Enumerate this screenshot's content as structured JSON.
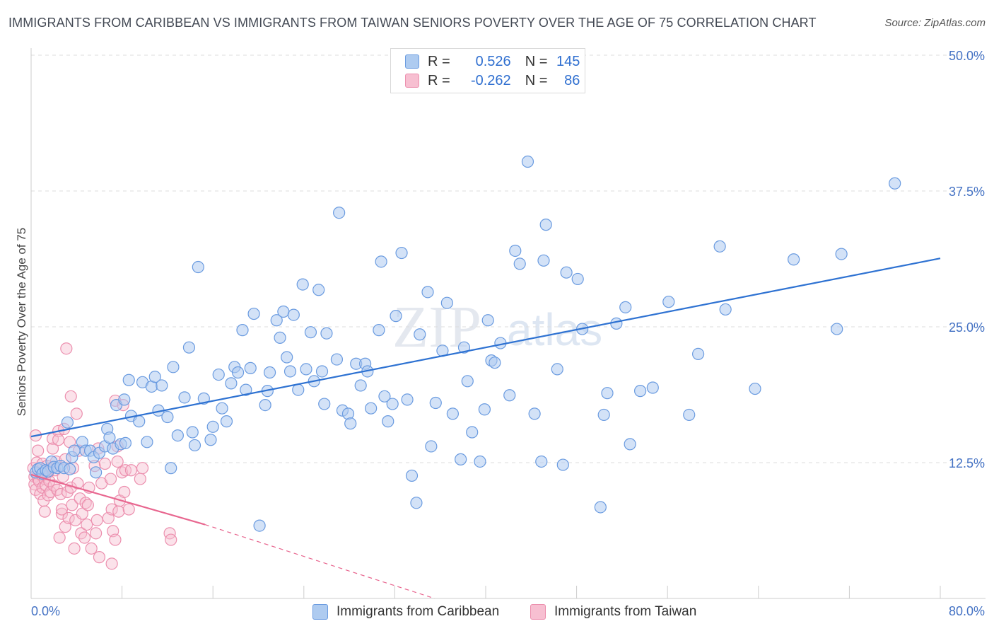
{
  "title": "IMMIGRANTS FROM CARIBBEAN VS IMMIGRANTS FROM TAIWAN SENIORS POVERTY OVER THE AGE OF 75 CORRELATION CHART",
  "source": "Source: ZipAtlas.com",
  "watermark": {
    "zip": "ZIP",
    "atlas": "atlas"
  },
  "legend": {
    "r_label": "R =",
    "n_label": "N =",
    "series": [
      {
        "name": "Immigrants from Caribbean",
        "r": "0.526",
        "n": "145"
      },
      {
        "name": "Immigrants from Taiwan",
        "r": "-0.262",
        "n": "86"
      }
    ]
  },
  "colors": {
    "caribbean_fill": "#aecbf0",
    "caribbean_stroke": "#6a9be0",
    "caribbean_line": "#2e72d2",
    "taiwan_fill": "#f7bfd1",
    "taiwan_stroke": "#ec8fae",
    "taiwan_line": "#e8668f",
    "grid": "#dddddd",
    "tick_label": "#4472c4"
  },
  "chart_data": {
    "type": "scatter",
    "title": "IMMIGRANTS FROM CARIBBEAN VS IMMIGRANTS FROM TAIWAN SENIORS POVERTY OVER THE AGE OF 75 CORRELATION CHART",
    "xlabel": "",
    "ylabel": "Seniors Poverty Over the Age of 75",
    "xlim": [
      0,
      80
    ],
    "ylim": [
      0,
      50
    ],
    "x_tick_labels": [
      "0.0%",
      "80.0%"
    ],
    "y_ticks": [
      12.5,
      25.0,
      37.5,
      50.0
    ],
    "y_tick_labels": [
      "12.5%",
      "25.0%",
      "37.5%",
      "50.0%"
    ],
    "grid": true,
    "legend_position": "top-center",
    "series": [
      {
        "name": "Immigrants from Caribbean",
        "trend": {
          "x0": 0,
          "y0": 14.9,
          "x1": 80,
          "y1": 31.3
        },
        "points": [
          [
            0.4,
            11.6
          ],
          [
            0.6,
            11.9
          ],
          [
            0.8,
            12.0
          ],
          [
            1.0,
            11.5
          ],
          [
            1.3,
            11.8
          ],
          [
            1.5,
            11.7
          ],
          [
            1.8,
            12.6
          ],
          [
            2.0,
            12.1
          ],
          [
            2.3,
            12.0
          ],
          [
            2.6,
            12.2
          ],
          [
            2.9,
            12.0
          ],
          [
            3.2,
            16.2
          ],
          [
            3.4,
            11.9
          ],
          [
            3.6,
            13.0
          ],
          [
            3.8,
            13.6
          ],
          [
            4.5,
            14.4
          ],
          [
            4.8,
            13.6
          ],
          [
            5.2,
            13.6
          ],
          [
            5.5,
            13.0
          ],
          [
            5.7,
            11.6
          ],
          [
            6.0,
            13.4
          ],
          [
            6.5,
            14.0
          ],
          [
            6.7,
            15.6
          ],
          [
            6.9,
            14.8
          ],
          [
            7.2,
            13.8
          ],
          [
            7.5,
            17.8
          ],
          [
            7.9,
            14.2
          ],
          [
            8.2,
            18.3
          ],
          [
            8.3,
            14.3
          ],
          [
            8.6,
            20.1
          ],
          [
            8.8,
            16.8
          ],
          [
            9.5,
            16.3
          ],
          [
            9.8,
            19.9
          ],
          [
            10.2,
            14.4
          ],
          [
            10.6,
            19.5
          ],
          [
            10.9,
            20.4
          ],
          [
            11.2,
            17.3
          ],
          [
            11.5,
            19.6
          ],
          [
            12.0,
            16.7
          ],
          [
            12.3,
            12.0
          ],
          [
            12.5,
            21.3
          ],
          [
            12.9,
            15.0
          ],
          [
            13.5,
            18.5
          ],
          [
            13.9,
            23.1
          ],
          [
            14.2,
            15.3
          ],
          [
            14.4,
            14.1
          ],
          [
            14.7,
            30.5
          ],
          [
            15.2,
            18.4
          ],
          [
            15.8,
            14.6
          ],
          [
            16.0,
            15.8
          ],
          [
            16.5,
            20.6
          ],
          [
            16.8,
            17.5
          ],
          [
            17.2,
            16.3
          ],
          [
            17.6,
            19.8
          ],
          [
            17.9,
            21.3
          ],
          [
            18.2,
            20.8
          ],
          [
            18.6,
            24.7
          ],
          [
            18.9,
            19.2
          ],
          [
            19.3,
            21.2
          ],
          [
            19.6,
            26.2
          ],
          [
            20.1,
            6.7
          ],
          [
            20.6,
            17.8
          ],
          [
            20.8,
            19.1
          ],
          [
            21.0,
            20.8
          ],
          [
            21.6,
            25.6
          ],
          [
            21.9,
            24.0
          ],
          [
            22.2,
            26.4
          ],
          [
            22.5,
            22.2
          ],
          [
            22.8,
            20.9
          ],
          [
            23.1,
            26.1
          ],
          [
            23.5,
            19.2
          ],
          [
            23.9,
            28.9
          ],
          [
            24.2,
            21.1
          ],
          [
            24.6,
            24.5
          ],
          [
            24.9,
            20.0
          ],
          [
            25.3,
            28.4
          ],
          [
            25.6,
            20.9
          ],
          [
            25.8,
            17.9
          ],
          [
            26.0,
            24.4
          ],
          [
            26.9,
            22.0
          ],
          [
            27.1,
            35.5
          ],
          [
            27.4,
            17.3
          ],
          [
            27.9,
            17.0
          ],
          [
            28.1,
            16.1
          ],
          [
            28.6,
            21.6
          ],
          [
            29.0,
            19.6
          ],
          [
            29.4,
            21.6
          ],
          [
            29.6,
            20.9
          ],
          [
            29.9,
            17.5
          ],
          [
            30.6,
            24.7
          ],
          [
            30.8,
            31.0
          ],
          [
            31.1,
            18.6
          ],
          [
            31.4,
            16.3
          ],
          [
            31.8,
            17.9
          ],
          [
            32.1,
            26.0
          ],
          [
            32.6,
            31.8
          ],
          [
            33.1,
            18.3
          ],
          [
            33.5,
            11.3
          ],
          [
            33.9,
            8.8
          ],
          [
            34.2,
            24.3
          ],
          [
            34.9,
            28.2
          ],
          [
            35.2,
            14.0
          ],
          [
            35.6,
            18.0
          ],
          [
            36.2,
            22.8
          ],
          [
            36.6,
            27.2
          ],
          [
            37.1,
            17.0
          ],
          [
            37.8,
            12.8
          ],
          [
            38.1,
            23.1
          ],
          [
            38.4,
            20.0
          ],
          [
            38.8,
            15.3
          ],
          [
            39.5,
            12.6
          ],
          [
            39.9,
            17.4
          ],
          [
            40.2,
            25.6
          ],
          [
            40.5,
            21.9
          ],
          [
            40.8,
            21.7
          ],
          [
            41.3,
            23.5
          ],
          [
            42.1,
            18.7
          ],
          [
            42.6,
            32.0
          ],
          [
            43.0,
            30.8
          ],
          [
            43.7,
            40.2
          ],
          [
            44.3,
            17.0
          ],
          [
            44.9,
            12.6
          ],
          [
            45.1,
            31.1
          ],
          [
            45.3,
            34.4
          ],
          [
            46.3,
            21.1
          ],
          [
            46.8,
            12.3
          ],
          [
            47.1,
            30.0
          ],
          [
            48.1,
            29.4
          ],
          [
            48.5,
            24.8
          ],
          [
            50.1,
            8.4
          ],
          [
            50.4,
            16.9
          ],
          [
            50.7,
            18.9
          ],
          [
            51.5,
            25.3
          ],
          [
            52.3,
            26.8
          ],
          [
            52.7,
            14.2
          ],
          [
            53.6,
            19.1
          ],
          [
            54.7,
            19.4
          ],
          [
            56.1,
            27.3
          ],
          [
            57.9,
            16.9
          ],
          [
            58.7,
            22.5
          ],
          [
            60.6,
            32.4
          ],
          [
            61.1,
            26.6
          ],
          [
            63.7,
            19.3
          ],
          [
            67.1,
            31.2
          ],
          [
            70.9,
            24.8
          ],
          [
            71.3,
            31.7
          ],
          [
            76.0,
            38.2
          ]
        ]
      },
      {
        "name": "Immigrants from Taiwan",
        "trend": {
          "x0": 0,
          "y0": 11.4,
          "x1": 15.3,
          "y1": 6.8
        },
        "trend_extension": {
          "x0": 15.3,
          "y0": 6.8,
          "x1": 35.5,
          "y1": 0.0
        },
        "points": [
          [
            0.2,
            12.0
          ],
          [
            0.3,
            11.2
          ],
          [
            0.3,
            10.5
          ],
          [
            0.4,
            10.0
          ],
          [
            0.4,
            15.0
          ],
          [
            0.5,
            12.5
          ],
          [
            0.6,
            11.0
          ],
          [
            0.6,
            13.6
          ],
          [
            0.7,
            10.8
          ],
          [
            0.8,
            9.6
          ],
          [
            0.9,
            11.4
          ],
          [
            1.0,
            10.2
          ],
          [
            1.0,
            12.4
          ],
          [
            1.1,
            9.0
          ],
          [
            1.2,
            11.0
          ],
          [
            1.2,
            8.0
          ],
          [
            1.3,
            10.4
          ],
          [
            1.4,
            12.2
          ],
          [
            1.5,
            9.5
          ],
          [
            1.5,
            11.6
          ],
          [
            1.6,
            10.8
          ],
          [
            1.7,
            9.8
          ],
          [
            1.8,
            12.0
          ],
          [
            1.9,
            13.8
          ],
          [
            1.9,
            14.7
          ],
          [
            2.0,
            10.4
          ],
          [
            2.1,
            11.8
          ],
          [
            2.2,
            12.6
          ],
          [
            2.3,
            10.0
          ],
          [
            2.4,
            15.4
          ],
          [
            2.4,
            14.6
          ],
          [
            2.5,
            5.6
          ],
          [
            2.6,
            9.6
          ],
          [
            2.7,
            7.8
          ],
          [
            2.7,
            8.2
          ],
          [
            2.8,
            11.2
          ],
          [
            2.9,
            15.6
          ],
          [
            3.0,
            12.8
          ],
          [
            3.0,
            6.6
          ],
          [
            3.1,
            23.0
          ],
          [
            3.2,
            9.8
          ],
          [
            3.3,
            7.4
          ],
          [
            3.4,
            14.4
          ],
          [
            3.5,
            10.2
          ],
          [
            3.5,
            18.6
          ],
          [
            3.6,
            8.6
          ],
          [
            3.7,
            12.0
          ],
          [
            3.8,
            4.6
          ],
          [
            3.9,
            7.2
          ],
          [
            4.0,
            17.0
          ],
          [
            4.1,
            10.6
          ],
          [
            4.2,
            13.6
          ],
          [
            4.3,
            9.2
          ],
          [
            4.4,
            6.0
          ],
          [
            4.5,
            7.8
          ],
          [
            4.7,
            5.6
          ],
          [
            4.8,
            8.8
          ],
          [
            4.9,
            6.8
          ],
          [
            5.0,
            8.6
          ],
          [
            5.1,
            10.2
          ],
          [
            5.3,
            4.6
          ],
          [
            5.6,
            12.2
          ],
          [
            5.7,
            6.0
          ],
          [
            5.8,
            7.2
          ],
          [
            5.9,
            13.8
          ],
          [
            6.0,
            3.8
          ],
          [
            6.2,
            10.6
          ],
          [
            6.5,
            12.4
          ],
          [
            6.8,
            7.4
          ],
          [
            7.0,
            11.0
          ],
          [
            7.1,
            8.2
          ],
          [
            7.1,
            3.2
          ],
          [
            7.2,
            6.2
          ],
          [
            7.4,
            18.2
          ],
          [
            7.4,
            5.4
          ],
          [
            7.6,
            14.0
          ],
          [
            7.6,
            12.6
          ],
          [
            7.7,
            8.0
          ],
          [
            7.8,
            9.0
          ],
          [
            8.0,
            11.6
          ],
          [
            8.1,
            17.8
          ],
          [
            8.2,
            9.8
          ],
          [
            8.3,
            11.8
          ],
          [
            8.6,
            8.2
          ],
          [
            8.8,
            11.8
          ],
          [
            9.6,
            11.0
          ],
          [
            9.8,
            12.0
          ],
          [
            12.2,
            6.0
          ],
          [
            12.3,
            5.4
          ]
        ]
      }
    ]
  }
}
